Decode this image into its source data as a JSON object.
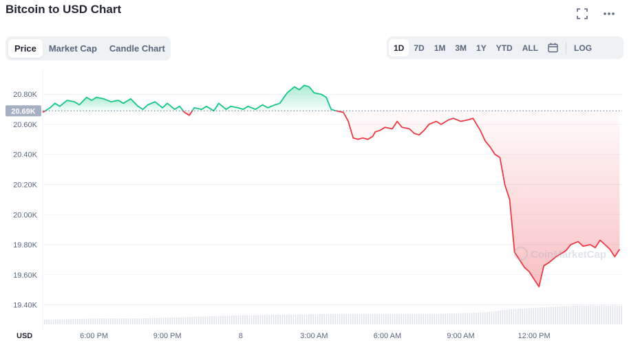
{
  "header": {
    "title": "Bitcoin to USD Chart",
    "fullscreen_icon": "fullscreen-icon",
    "more_icon": "more-icon"
  },
  "tabs": [
    {
      "label": "Price",
      "active": true
    },
    {
      "label": "Market Cap",
      "active": false
    },
    {
      "label": "Candle Chart",
      "active": false
    }
  ],
  "ranges": [
    {
      "label": "1D",
      "active": true
    },
    {
      "label": "7D",
      "active": false
    },
    {
      "label": "1M",
      "active": false
    },
    {
      "label": "3M",
      "active": false
    },
    {
      "label": "1Y",
      "active": false
    },
    {
      "label": "YTD",
      "active": false
    },
    {
      "label": "ALL",
      "active": false
    }
  ],
  "calendar_icon": "calendar-icon",
  "log_label": "LOG",
  "watermark": "CoinMarketCap",
  "colors": {
    "up": "#16c784",
    "down": "#ea3943",
    "grid": "#eff2f5",
    "axis_text": "#58667e",
    "badge": "#a6b0c3"
  },
  "chart_data": {
    "type": "area",
    "currency_label": "USD",
    "reference_value": 20690,
    "reference_label": "20.69K",
    "ylim": [
      19270,
      20970
    ],
    "y_ticks": [
      {
        "value": 19400,
        "label": "19.40K"
      },
      {
        "value": 19600,
        "label": "19.60K"
      },
      {
        "value": 19800,
        "label": "19.80K"
      },
      {
        "value": 20000,
        "label": "20.00K"
      },
      {
        "value": 20200,
        "label": "20.20K"
      },
      {
        "value": 20400,
        "label": "20.40K"
      },
      {
        "value": 20600,
        "label": "20.60K"
      },
      {
        "value": 20800,
        "label": "20.80K"
      }
    ],
    "x_range": [
      15.9,
      39.6
    ],
    "x_ticks": [
      {
        "value": 18,
        "label": "6:00 PM"
      },
      {
        "value": 21,
        "label": "9:00 PM"
      },
      {
        "value": 24,
        "label": "8"
      },
      {
        "value": 27,
        "label": "3:00 AM"
      },
      {
        "value": 30,
        "label": "6:00 AM"
      },
      {
        "value": 33,
        "label": "9:00 AM"
      },
      {
        "value": 36,
        "label": "12:00 PM"
      }
    ],
    "price_series": {
      "x": [
        15.9,
        16.2,
        16.4,
        16.6,
        16.9,
        17.2,
        17.4,
        17.7,
        17.9,
        18.1,
        18.4,
        18.7,
        19.0,
        19.2,
        19.5,
        19.8,
        20.0,
        20.2,
        20.5,
        20.8,
        21.0,
        21.3,
        21.5,
        21.7,
        21.9,
        22.1,
        22.4,
        22.6,
        22.9,
        23.1,
        23.4,
        23.6,
        23.9,
        24.1,
        24.3,
        24.6,
        24.9,
        25.1,
        25.4,
        25.6,
        25.9,
        26.2,
        26.4,
        26.6,
        26.8,
        27.0,
        27.3,
        27.5,
        27.7,
        27.9,
        28.2,
        28.4,
        28.6,
        28.8,
        29.0,
        29.2,
        29.4,
        29.5,
        29.7,
        29.9,
        30.2,
        30.4,
        30.6,
        30.9,
        31.1,
        31.3,
        31.5,
        31.7,
        32.0,
        32.2,
        32.5,
        32.7,
        33.0,
        33.3,
        33.5,
        33.8,
        34.0,
        34.2,
        34.4,
        34.6,
        34.8,
        35.0,
        35.2,
        35.4,
        35.6,
        35.8,
        36.0,
        36.2,
        36.4,
        36.6,
        36.9,
        37.1,
        37.3,
        37.5,
        37.8,
        38.0,
        38.3,
        38.5,
        38.7,
        38.9,
        39.1,
        39.3,
        39.5
      ],
      "y": [
        20680,
        20710,
        20740,
        20720,
        20760,
        20750,
        20730,
        20780,
        20760,
        20780,
        20770,
        20750,
        20760,
        20740,
        20770,
        20720,
        20700,
        20730,
        20750,
        20710,
        20740,
        20700,
        20720,
        20680,
        20660,
        20710,
        20700,
        20720,
        20690,
        20740,
        20700,
        20720,
        20710,
        20700,
        20720,
        20700,
        20730,
        20710,
        20730,
        20740,
        20810,
        20850,
        20830,
        20860,
        20850,
        20810,
        20800,
        20780,
        20700,
        20690,
        20680,
        20620,
        20510,
        20500,
        20510,
        20500,
        20520,
        20550,
        20560,
        20580,
        20570,
        20620,
        20580,
        20570,
        20540,
        20530,
        20560,
        20600,
        20620,
        20600,
        20630,
        20640,
        20620,
        20630,
        20640,
        20560,
        20490,
        20450,
        20400,
        20380,
        20200,
        20100,
        19750,
        19700,
        19650,
        19620,
        19570,
        19520,
        19660,
        19680,
        19720,
        19740,
        19760,
        19800,
        19820,
        19790,
        19800,
        19780,
        19830,
        19800,
        19770,
        19720,
        19770
      ],
      "color_above_reference": "#16c784",
      "color_below_reference": "#ea3943"
    },
    "volume_series": {
      "x": [
        15.9,
        18.0,
        20.0,
        22.0,
        24.0,
        26.0,
        28.0,
        30.0,
        32.0,
        34.0,
        35.0,
        36.0,
        37.0,
        38.0,
        39.6
      ],
      "y": [
        19300,
        19310,
        19310,
        19320,
        19330,
        19335,
        19340,
        19340,
        19340,
        19350,
        19370,
        19380,
        19390,
        19395,
        19395
      ]
    }
  }
}
